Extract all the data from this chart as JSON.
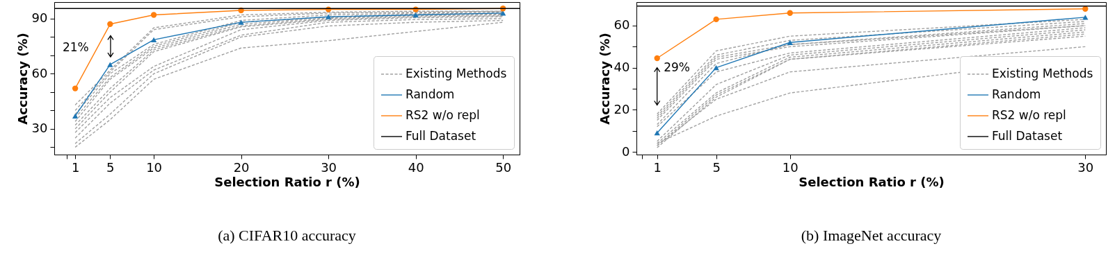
{
  "chart_data": [
    {
      "type": "line",
      "title": "(a) CIFAR10 accuracy",
      "xlabel": "Selection Ratio r (%)",
      "ylabel": "Accuracy (%)",
      "x": [
        1,
        5,
        10,
        20,
        30,
        40,
        50
      ],
      "xlim": [
        -1.4,
        51.9
      ],
      "xticks": [
        {
          "value": 0,
          "label": null
        },
        1,
        5,
        10,
        20,
        30,
        40,
        50
      ],
      "ylim": [
        16,
        99
      ],
      "yticks": [
        {
          "value": 20,
          "label": null
        },
        30,
        {
          "value": 40,
          "label": null
        },
        {
          "value": 50,
          "label": null
        },
        60,
        {
          "value": 70,
          "label": null
        },
        {
          "value": 80,
          "label": null
        },
        90
      ],
      "grid": false,
      "legend": "bottom right",
      "series": [
        {
          "name": "Existing Methods",
          "color": "#a0a0a0",
          "line_style": "dashed",
          "marker": "none",
          "values": [
            43,
            62,
            85,
            92,
            93.5,
            94,
            94
          ]
        },
        {
          "color": "#a0a0a0",
          "line_style": "dashed",
          "marker": "none",
          "values": [
            40,
            61,
            84,
            91,
            93,
            93.5,
            94
          ]
        },
        {
          "color": "#a0a0a0",
          "line_style": "dashed",
          "marker": "none",
          "values": [
            38,
            60,
            76,
            89,
            92,
            93,
            93.5
          ]
        },
        {
          "color": "#a0a0a0",
          "line_style": "dashed",
          "marker": "none",
          "values": [
            36,
            58,
            75,
            88,
            91,
            92.5,
            93
          ]
        },
        {
          "color": "#a0a0a0",
          "line_style": "dashed",
          "marker": "none",
          "values": [
            34,
            57,
            74,
            87,
            90.5,
            92,
            92.5
          ]
        },
        {
          "color": "#a0a0a0",
          "line_style": "dashed",
          "marker": "none",
          "values": [
            32,
            52,
            73,
            86,
            90,
            91.5,
            92
          ]
        },
        {
          "color": "#a0a0a0",
          "line_style": "dashed",
          "marker": "none",
          "values": [
            30,
            50,
            72,
            85.5,
            89.5,
            91,
            91.5
          ]
        },
        {
          "color": "#a0a0a0",
          "line_style": "dashed",
          "marker": "none",
          "values": [
            28,
            47,
            64,
            84,
            89,
            90.5,
            91
          ]
        },
        {
          "color": "#a0a0a0",
          "line_style": "dashed",
          "marker": "none",
          "values": [
            25,
            44,
            62,
            81,
            88,
            89.5,
            90
          ]
        },
        {
          "color": "#a0a0a0",
          "line_style": "dashed",
          "marker": "none",
          "values": [
            22,
            38,
            60,
            80,
            86,
            88,
            89
          ]
        },
        {
          "color": "#a0a0a0",
          "line_style": "dashed",
          "marker": "none",
          "values": [
            20,
            35,
            57,
            74,
            78,
            83,
            88
          ]
        },
        {
          "name": "Random",
          "color": "#1f77b4",
          "line_style": "solid",
          "marker": "triangle",
          "values": [
            37,
            65,
            78.5,
            88,
            91,
            92,
            93
          ]
        },
        {
          "name": "RS2 w/o repl",
          "color": "#ff7f0e",
          "line_style": "solid",
          "marker": "circle",
          "values": [
            52,
            87,
            92,
            94.5,
            95,
            95,
            95.5
          ]
        }
      ],
      "ref_lines": [
        {
          "axis": "y",
          "value": 95.5,
          "label": "Full Dataset",
          "color": "#000000",
          "line_style": "solid"
        }
      ],
      "annotations": [
        "21%"
      ]
    },
    {
      "type": "line",
      "title": "(b) ImageNet accuracy",
      "xlabel": "Selection Ratio r (%)",
      "ylabel": "Accuracy (%)",
      "x": [
        1,
        5,
        10,
        30
      ],
      "xlim": [
        -0.4,
        31.4
      ],
      "xticks": [
        {
          "value": 0,
          "label": null
        },
        1,
        5,
        10,
        30
      ],
      "ylim": [
        -1.3,
        71.2
      ],
      "yticks": [
        0,
        {
          "value": 10,
          "label": null
        },
        20,
        {
          "value": 30,
          "label": null
        },
        40,
        {
          "value": 50,
          "label": null
        },
        60
      ],
      "grid": false,
      "legend": "bottom right",
      "series": [
        {
          "name": "Existing Methods",
          "color": "#a0a0a0",
          "line_style": "dashed",
          "marker": "none",
          "values": [
            18,
            48,
            55,
            63
          ]
        },
        {
          "color": "#a0a0a0",
          "line_style": "dashed",
          "marker": "none",
          "values": [
            17,
            46,
            53,
            62
          ]
        },
        {
          "color": "#a0a0a0",
          "line_style": "dashed",
          "marker": "none",
          "values": [
            16,
            45,
            51,
            61
          ]
        },
        {
          "color": "#a0a0a0",
          "line_style": "dashed",
          "marker": "none",
          "values": [
            15,
            44,
            50,
            60
          ]
        },
        {
          "color": "#a0a0a0",
          "line_style": "dashed",
          "marker": "none",
          "values": [
            13,
            42,
            51,
            60
          ]
        },
        {
          "color": "#a0a0a0",
          "line_style": "dashed",
          "marker": "none",
          "values": [
            12,
            38,
            47,
            59
          ]
        },
        {
          "color": "#a0a0a0",
          "line_style": "dashed",
          "marker": "none",
          "values": [
            5,
            32,
            46,
            58
          ]
        },
        {
          "color": "#a0a0a0",
          "line_style": "dashed",
          "marker": "none",
          "values": [
            4,
            28,
            45,
            57
          ]
        },
        {
          "color": "#a0a0a0",
          "line_style": "dashed",
          "marker": "none",
          "values": [
            3,
            27,
            44,
            56
          ]
        },
        {
          "color": "#a0a0a0",
          "line_style": "dashed",
          "marker": "none",
          "values": [
            2,
            26,
            44,
            55
          ]
        },
        {
          "color": "#a0a0a0",
          "line_style": "dashed",
          "marker": "none",
          "values": [
            3,
            25,
            38,
            50
          ]
        },
        {
          "color": "#a0a0a0",
          "line_style": "dashed",
          "marker": "none",
          "values": [
            4,
            17,
            28,
            45
          ]
        },
        {
          "name": "Random",
          "color": "#1f77b4",
          "line_style": "solid",
          "marker": "triangle",
          "values": [
            9,
            40,
            52,
            64
          ]
        },
        {
          "name": "RS2 w/o repl",
          "color": "#ff7f0e",
          "line_style": "solid",
          "marker": "circle",
          "values": [
            44.5,
            63,
            66,
            68
          ]
        }
      ],
      "ref_lines": [
        {
          "axis": "y",
          "value": 69.3,
          "label": "Full Dataset",
          "color": "#000000",
          "line_style": "solid"
        }
      ],
      "annotations": [
        "29%"
      ]
    }
  ]
}
